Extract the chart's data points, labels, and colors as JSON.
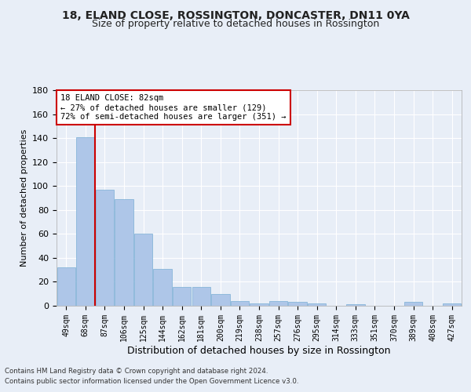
{
  "title": "18, ELAND CLOSE, ROSSINGTON, DONCASTER, DN11 0YA",
  "subtitle": "Size of property relative to detached houses in Rossington",
  "xlabel": "Distribution of detached houses by size in Rossington",
  "ylabel": "Number of detached properties",
  "categories": [
    "49sqm",
    "68sqm",
    "87sqm",
    "106sqm",
    "125sqm",
    "144sqm",
    "162sqm",
    "181sqm",
    "200sqm",
    "219sqm",
    "238sqm",
    "257sqm",
    "276sqm",
    "295sqm",
    "314sqm",
    "333sqm",
    "351sqm",
    "370sqm",
    "389sqm",
    "408sqm",
    "427sqm"
  ],
  "values": [
    32,
    141,
    97,
    89,
    60,
    31,
    16,
    16,
    10,
    4,
    2,
    4,
    3,
    2,
    0,
    1,
    0,
    0,
    3,
    0,
    2
  ],
  "bar_color": "#aec6e8",
  "bar_edge_color": "#7aafd4",
  "vline_x": 1.5,
  "vline_color": "#cc0000",
  "ylim": [
    0,
    180
  ],
  "yticks": [
    0,
    20,
    40,
    60,
    80,
    100,
    120,
    140,
    160,
    180
  ],
  "annotation_text": "18 ELAND CLOSE: 82sqm\n← 27% of detached houses are smaller (129)\n72% of semi-detached houses are larger (351) →",
  "annotation_box_color": "#ffffff",
  "annotation_box_edge": "#cc0000",
  "bg_color": "#e8eef7",
  "plot_bg_color": "#e8eef7",
  "footer_line1": "Contains HM Land Registry data © Crown copyright and database right 2024.",
  "footer_line2": "Contains public sector information licensed under the Open Government Licence v3.0.",
  "title_fontsize": 10,
  "subtitle_fontsize": 9,
  "ylabel_fontsize": 8,
  "xlabel_fontsize": 9
}
